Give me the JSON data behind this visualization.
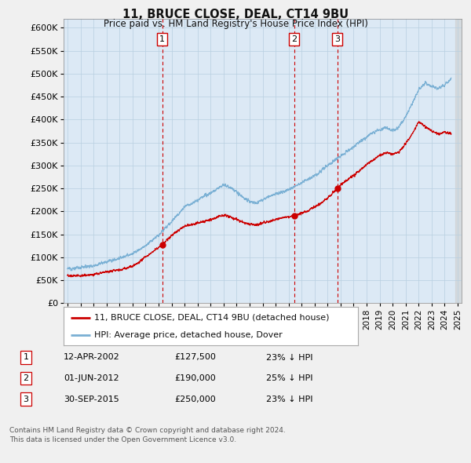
{
  "title": "11, BRUCE CLOSE, DEAL, CT14 9BU",
  "subtitle": "Price paid vs. HM Land Registry's House Price Index (HPI)",
  "ylim": [
    0,
    620000
  ],
  "yticks": [
    0,
    50000,
    100000,
    150000,
    200000,
    250000,
    300000,
    350000,
    400000,
    450000,
    500000,
    550000,
    600000
  ],
  "xlim_start": 1994.7,
  "xlim_end": 2025.3,
  "transactions": [
    {
      "num": 1,
      "date_x": 2002.28,
      "price": 127500,
      "label": "12-APR-2002",
      "pct": "23% ↓ HPI"
    },
    {
      "num": 2,
      "date_x": 2012.42,
      "price": 190000,
      "label": "01-JUN-2012",
      "pct": "25% ↓ HPI"
    },
    {
      "num": 3,
      "date_x": 2015.75,
      "price": 250000,
      "label": "30-SEP-2015",
      "pct": "23% ↓ HPI"
    }
  ],
  "legend_property_label": "11, BRUCE CLOSE, DEAL, CT14 9BU (detached house)",
  "legend_hpi_label": "HPI: Average price, detached house, Dover",
  "footer1": "Contains HM Land Registry data © Crown copyright and database right 2024.",
  "footer2": "This data is licensed under the Open Government Licence v3.0.",
  "property_color": "#cc0000",
  "hpi_color": "#7ab0d4",
  "background_color": "#f0f0f0",
  "plot_background": "#dce9f5",
  "hpi_anchors_x": [
    1995.0,
    1995.5,
    1996.0,
    1997.0,
    1998.0,
    1999.0,
    2000.0,
    2001.0,
    2002.0,
    2003.0,
    2004.0,
    2005.0,
    2006.0,
    2007.0,
    2007.5,
    2008.0,
    2008.5,
    2009.0,
    2009.5,
    2010.0,
    2010.5,
    2011.0,
    2011.5,
    2012.0,
    2012.5,
    2013.0,
    2013.5,
    2014.0,
    2014.5,
    2015.0,
    2015.5,
    2016.0,
    2016.5,
    2017.0,
    2017.5,
    2018.0,
    2018.5,
    2019.0,
    2019.5,
    2020.0,
    2020.5,
    2021.0,
    2021.5,
    2022.0,
    2022.5,
    2023.0,
    2023.5,
    2024.0,
    2024.5
  ],
  "hpi_anchors_y": [
    75000,
    76000,
    78000,
    82000,
    90000,
    98000,
    108000,
    125000,
    148000,
    178000,
    210000,
    225000,
    240000,
    258000,
    252000,
    242000,
    230000,
    222000,
    218000,
    225000,
    232000,
    238000,
    242000,
    248000,
    255000,
    262000,
    270000,
    278000,
    288000,
    300000,
    310000,
    322000,
    330000,
    340000,
    352000,
    362000,
    372000,
    378000,
    382000,
    375000,
    385000,
    405000,
    435000,
    465000,
    480000,
    472000,
    468000,
    475000,
    490000
  ],
  "prop_anchors_x": [
    1995.0,
    1996.0,
    1997.0,
    1998.0,
    1999.0,
    2000.0,
    2001.0,
    2002.28,
    2003.0,
    2004.0,
    2005.0,
    2006.0,
    2007.0,
    2007.5,
    2008.0,
    2008.5,
    2009.0,
    2009.5,
    2010.0,
    2010.5,
    2011.0,
    2011.5,
    2012.0,
    2012.42,
    2013.0,
    2013.5,
    2014.0,
    2014.5,
    2015.0,
    2015.75,
    2016.0,
    2016.5,
    2017.0,
    2017.5,
    2018.0,
    2018.5,
    2019.0,
    2019.5,
    2020.0,
    2020.5,
    2021.0,
    2021.5,
    2022.0,
    2022.5,
    2023.0,
    2023.5,
    2024.0,
    2024.5
  ],
  "prop_anchors_y": [
    60000,
    60000,
    63000,
    68000,
    73000,
    80000,
    100000,
    127500,
    148000,
    168000,
    175000,
    182000,
    192000,
    188000,
    183000,
    176000,
    172000,
    170000,
    175000,
    178000,
    183000,
    186000,
    188000,
    190000,
    196000,
    202000,
    210000,
    218000,
    230000,
    250000,
    258000,
    268000,
    278000,
    290000,
    302000,
    312000,
    322000,
    328000,
    325000,
    330000,
    348000,
    368000,
    395000,
    385000,
    375000,
    368000,
    372000,
    370000
  ]
}
